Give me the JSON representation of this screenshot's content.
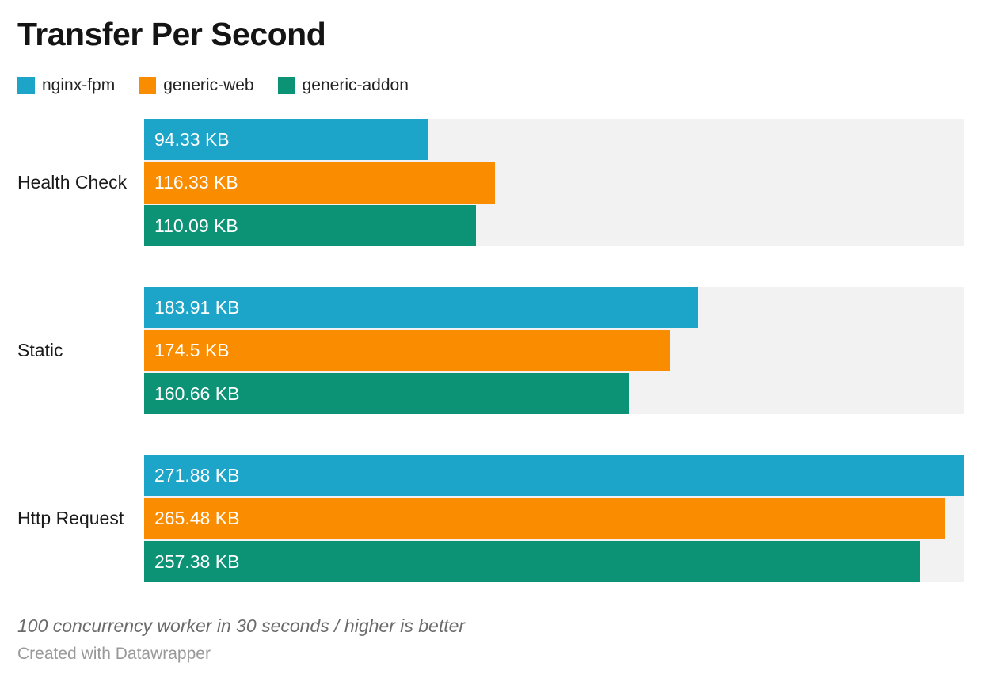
{
  "title": "Transfer Per Second",
  "legend": {
    "items": [
      {
        "label": "nginx-fpm",
        "color": "#1da5c9"
      },
      {
        "label": "generic-web",
        "color": "#fa8c00"
      },
      {
        "label": "generic-addon",
        "color": "#0c9376"
      }
    ]
  },
  "chart_data": {
    "type": "bar",
    "orientation": "horizontal",
    "title": "Transfer Per Second",
    "unit": "KB",
    "categories": [
      "Health Check",
      "Static",
      "Http Request"
    ],
    "series": [
      {
        "name": "nginx-fpm",
        "color": "#1da5c9",
        "values": [
          94.33,
          183.91,
          271.88
        ],
        "labels": [
          "94.33 KB",
          "183.91 KB",
          "271.88 KB"
        ]
      },
      {
        "name": "generic-web",
        "color": "#fa8c00",
        "values": [
          116.33,
          174.5,
          265.48
        ],
        "labels": [
          "116.33 KB",
          "174.5 KB",
          "265.48 KB"
        ]
      },
      {
        "name": "generic-addon",
        "color": "#0c9376",
        "values": [
          110.09,
          160.66,
          257.38
        ],
        "labels": [
          "110.09 KB",
          "160.66 KB",
          "257.38 KB"
        ]
      }
    ],
    "xlim": [
      0,
      271.88
    ],
    "track_color": "#f2f2f2",
    "value_label_position": "inside-start",
    "legend_position": "top",
    "grid": false
  },
  "footer": {
    "note": "100 concurrency worker in 30 seconds / higher is better",
    "credit": "Created with Datawrapper"
  }
}
